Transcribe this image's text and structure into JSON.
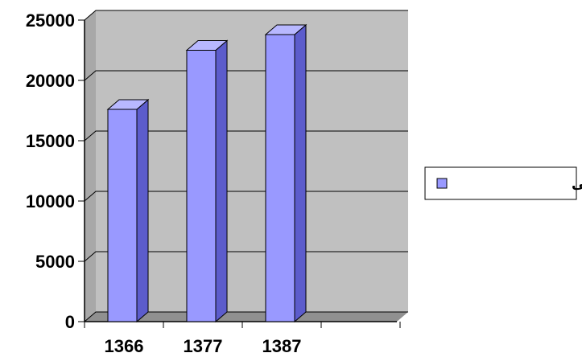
{
  "chart_data": {
    "type": "bar",
    "style": "3d-column",
    "categories": [
      "1366",
      "1377",
      "1387"
    ],
    "series": [
      {
        "name": "تعداد واحد دامی",
        "values": [
          17600,
          22500,
          23800
        ]
      }
    ],
    "ylim": [
      0,
      25000
    ],
    "yticks": [
      "0",
      "5000",
      "10000",
      "15000",
      "20000",
      "25000"
    ],
    "title": "",
    "xlabel": "",
    "ylabel": "",
    "grid": true,
    "legend_position": "right",
    "colors": {
      "bar_front": "#9999ff",
      "bar_side": "#5c5ccc",
      "bar_top": "#b8b8ff",
      "plot_wall": "#c0c0c0",
      "grid": "#000000"
    }
  },
  "legend": {
    "label": "تعداد واحد دامی",
    "swatch_color": "#9999ff"
  }
}
